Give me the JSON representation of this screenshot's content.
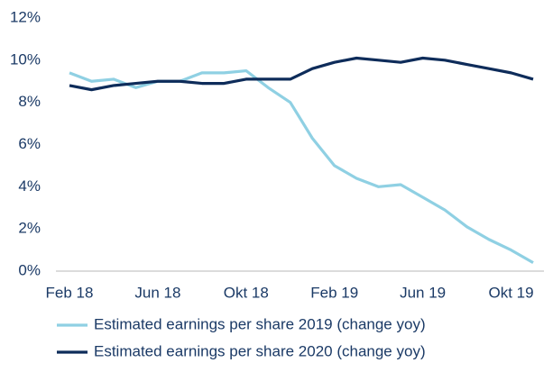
{
  "chart_data": {
    "type": "line",
    "categories": [
      "Feb 18",
      null,
      null,
      null,
      "Jun 18",
      null,
      null,
      null,
      "Okt 18",
      null,
      null,
      null,
      "Feb 19",
      null,
      null,
      null,
      "Jun 19",
      null,
      null,
      null,
      "Okt 19",
      null
    ],
    "series": [
      {
        "name": "Estimated earnings per share 2019 (change yoy)",
        "color": "#8fd0e3",
        "values": [
          9.4,
          9.0,
          9.1,
          8.7,
          9.0,
          9.0,
          9.4,
          9.4,
          9.5,
          8.7,
          8.0,
          6.3,
          5.0,
          4.4,
          4.0,
          4.1,
          3.5,
          2.9,
          2.1,
          1.5,
          1.0,
          0.4
        ]
      },
      {
        "name": "Estimated earnings per share 2020 (change yoy)",
        "color": "#0e2c5a",
        "values": [
          8.8,
          8.6,
          8.8,
          8.9,
          9.0,
          9.0,
          8.9,
          8.9,
          9.1,
          9.1,
          9.1,
          9.6,
          9.9,
          10.1,
          10.0,
          9.9,
          10.1,
          10.0,
          9.8,
          9.6,
          9.4,
          9.1
        ]
      }
    ],
    "ylim": [
      0,
      12
    ],
    "yticks": [
      {
        "value": 0,
        "label": "0%"
      },
      {
        "value": 2,
        "label": "2%"
      },
      {
        "value": 4,
        "label": "4%"
      },
      {
        "value": 6,
        "label": "6%"
      },
      {
        "value": 8,
        "label": "8%"
      },
      {
        "value": 10,
        "label": "10%"
      },
      {
        "value": 12,
        "label": "12%"
      }
    ],
    "grid": false,
    "legend": "bottom"
  }
}
